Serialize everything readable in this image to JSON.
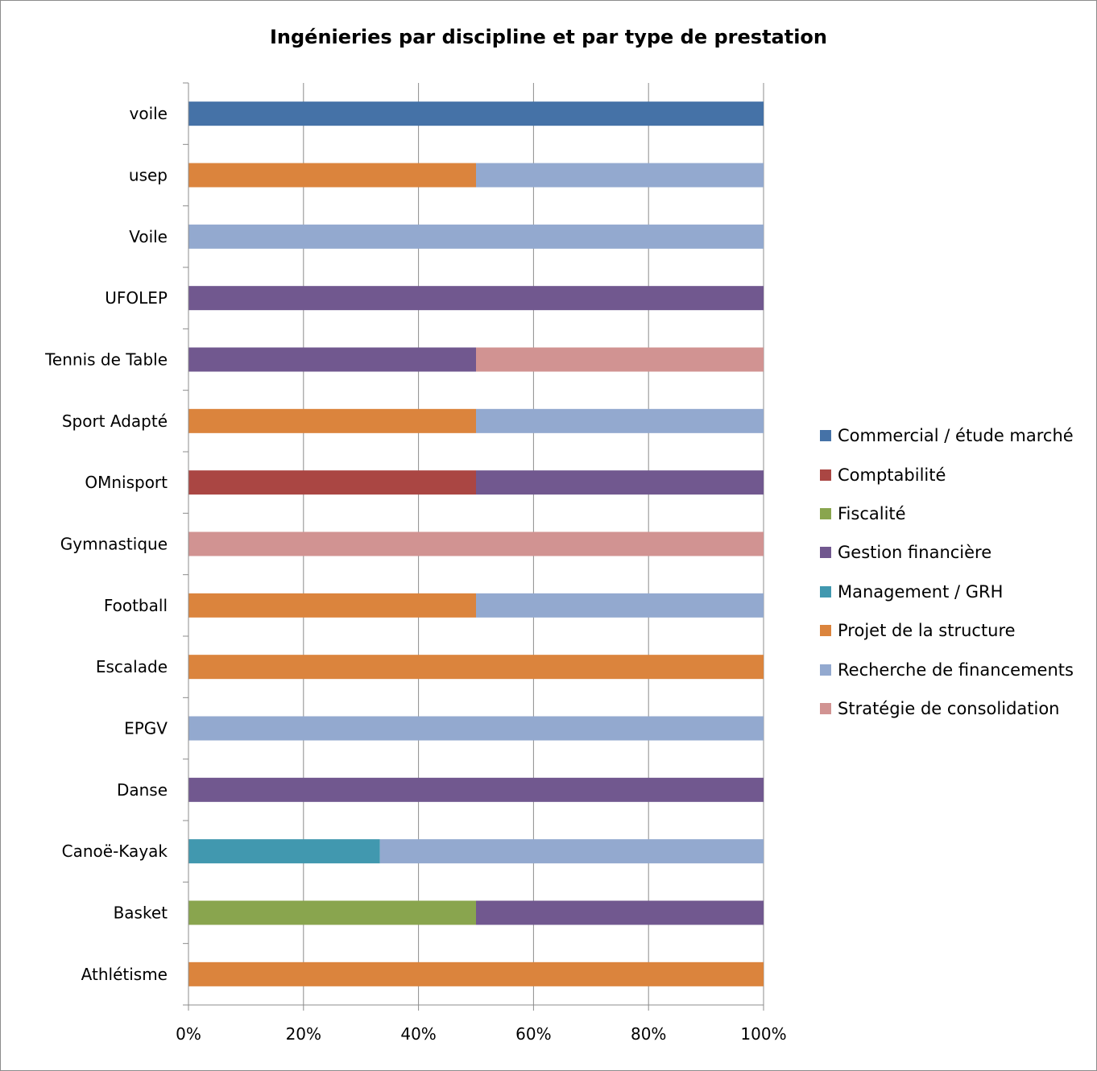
{
  "chart_data": {
    "type": "bar",
    "orientation": "horizontal",
    "stacked": true,
    "percent_stacked": true,
    "title": "Ingénieries par discipline et par type de prestation",
    "xlabel": "",
    "ylabel": "",
    "xlim": [
      0,
      100
    ],
    "x_ticks": [
      "0%",
      "20%",
      "40%",
      "60%",
      "80%",
      "100%"
    ],
    "grid": "vertical",
    "legend": "right",
    "categories": [
      "Athlétisme",
      "Basket",
      "Canoë-Kayak",
      "Danse",
      "EPGV",
      "Escalade",
      "Football",
      "Gymnastique",
      "OMnisport",
      "Sport Adapté",
      "Tennis de Table",
      "UFOLEP",
      "Voile",
      "usep",
      "voile"
    ],
    "series": [
      {
        "name": "Commercial / étude marché",
        "color": "#4572a7",
        "values": [
          0,
          0,
          0,
          0,
          0,
          0,
          0,
          0,
          0,
          0,
          0,
          0,
          0,
          0,
          100
        ]
      },
      {
        "name": "Comptabilité",
        "color": "#aa4643",
        "values": [
          0,
          0,
          0,
          0,
          0,
          0,
          0,
          0,
          50,
          0,
          0,
          0,
          0,
          0,
          0
        ]
      },
      {
        "name": "Fiscalité",
        "color": "#89a54e",
        "values": [
          0,
          50,
          0,
          0,
          0,
          0,
          0,
          0,
          0,
          0,
          0,
          0,
          0,
          0,
          0
        ]
      },
      {
        "name": "Gestion financière",
        "color": "#71588f",
        "values": [
          0,
          50,
          0,
          100,
          0,
          0,
          0,
          0,
          50,
          0,
          50,
          100,
          0,
          0,
          0
        ]
      },
      {
        "name": "Management / GRH",
        "color": "#4198af",
        "values": [
          0,
          0,
          33.3,
          0,
          0,
          0,
          0,
          0,
          0,
          0,
          0,
          0,
          0,
          0,
          0
        ]
      },
      {
        "name": "Projet de la structure",
        "color": "#db843d",
        "values": [
          100,
          0,
          0,
          0,
          0,
          100,
          50,
          0,
          0,
          50,
          0,
          0,
          0,
          50,
          0
        ]
      },
      {
        "name": "Recherche de financements",
        "color": "#93a9cf",
        "values": [
          0,
          0,
          66.7,
          0,
          100,
          0,
          50,
          0,
          0,
          50,
          0,
          0,
          100,
          50,
          0
        ]
      },
      {
        "name": "Stratégie de consolidation",
        "color": "#d19392",
        "values": [
          0,
          0,
          0,
          0,
          0,
          0,
          0,
          100,
          0,
          0,
          50,
          0,
          0,
          0,
          0
        ]
      }
    ]
  }
}
